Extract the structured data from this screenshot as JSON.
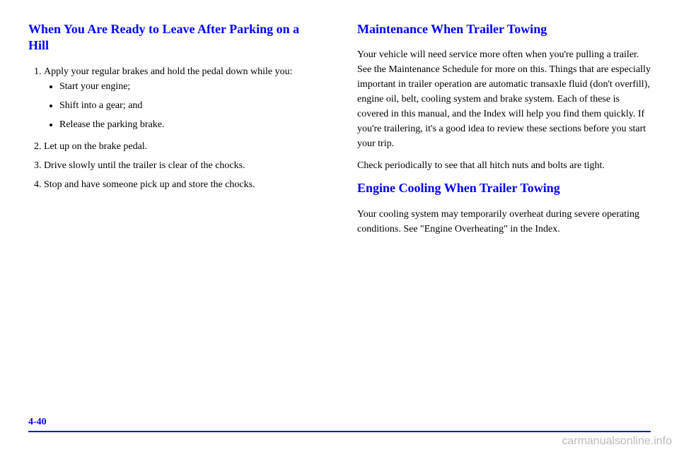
{
  "left": {
    "heading": "When You Are Ready to Leave After Parking on a Hill",
    "steps": [
      "Apply your regular brakes and hold the pedal down while you:",
      "",
      "",
      "",
      "Let up on the brake pedal.",
      "Drive slowly until the trailer is clear of the chocks.",
      "Stop and have someone pick up and store the chocks."
    ],
    "subitems": [
      "Start your engine;",
      "Shift into a gear; and",
      "Release the parking brake."
    ]
  },
  "right": {
    "heading1": "Maintenance When Trailer Towing",
    "para1": "Your vehicle will need service more often when you're pulling a trailer. See the Maintenance Schedule for more on this. Things that are especially important in trailer operation are automatic transaxle fluid (don't overfill), engine oil, belt, cooling system and brake system. Each of these is covered in this manual, and the Index will help you find them quickly. If you're trailering, it's a good idea to review these sections before you start your trip.",
    "para2": "Check periodically to see that all hitch nuts and bolts are tight.",
    "heading2": "Engine Cooling When Trailer Towing",
    "para3": "Your cooling system may temporarily overheat during severe operating conditions. See \"Engine Overheating\" in the Index."
  },
  "pageNumber": "4-40",
  "watermark": "carmanualsonline.info"
}
